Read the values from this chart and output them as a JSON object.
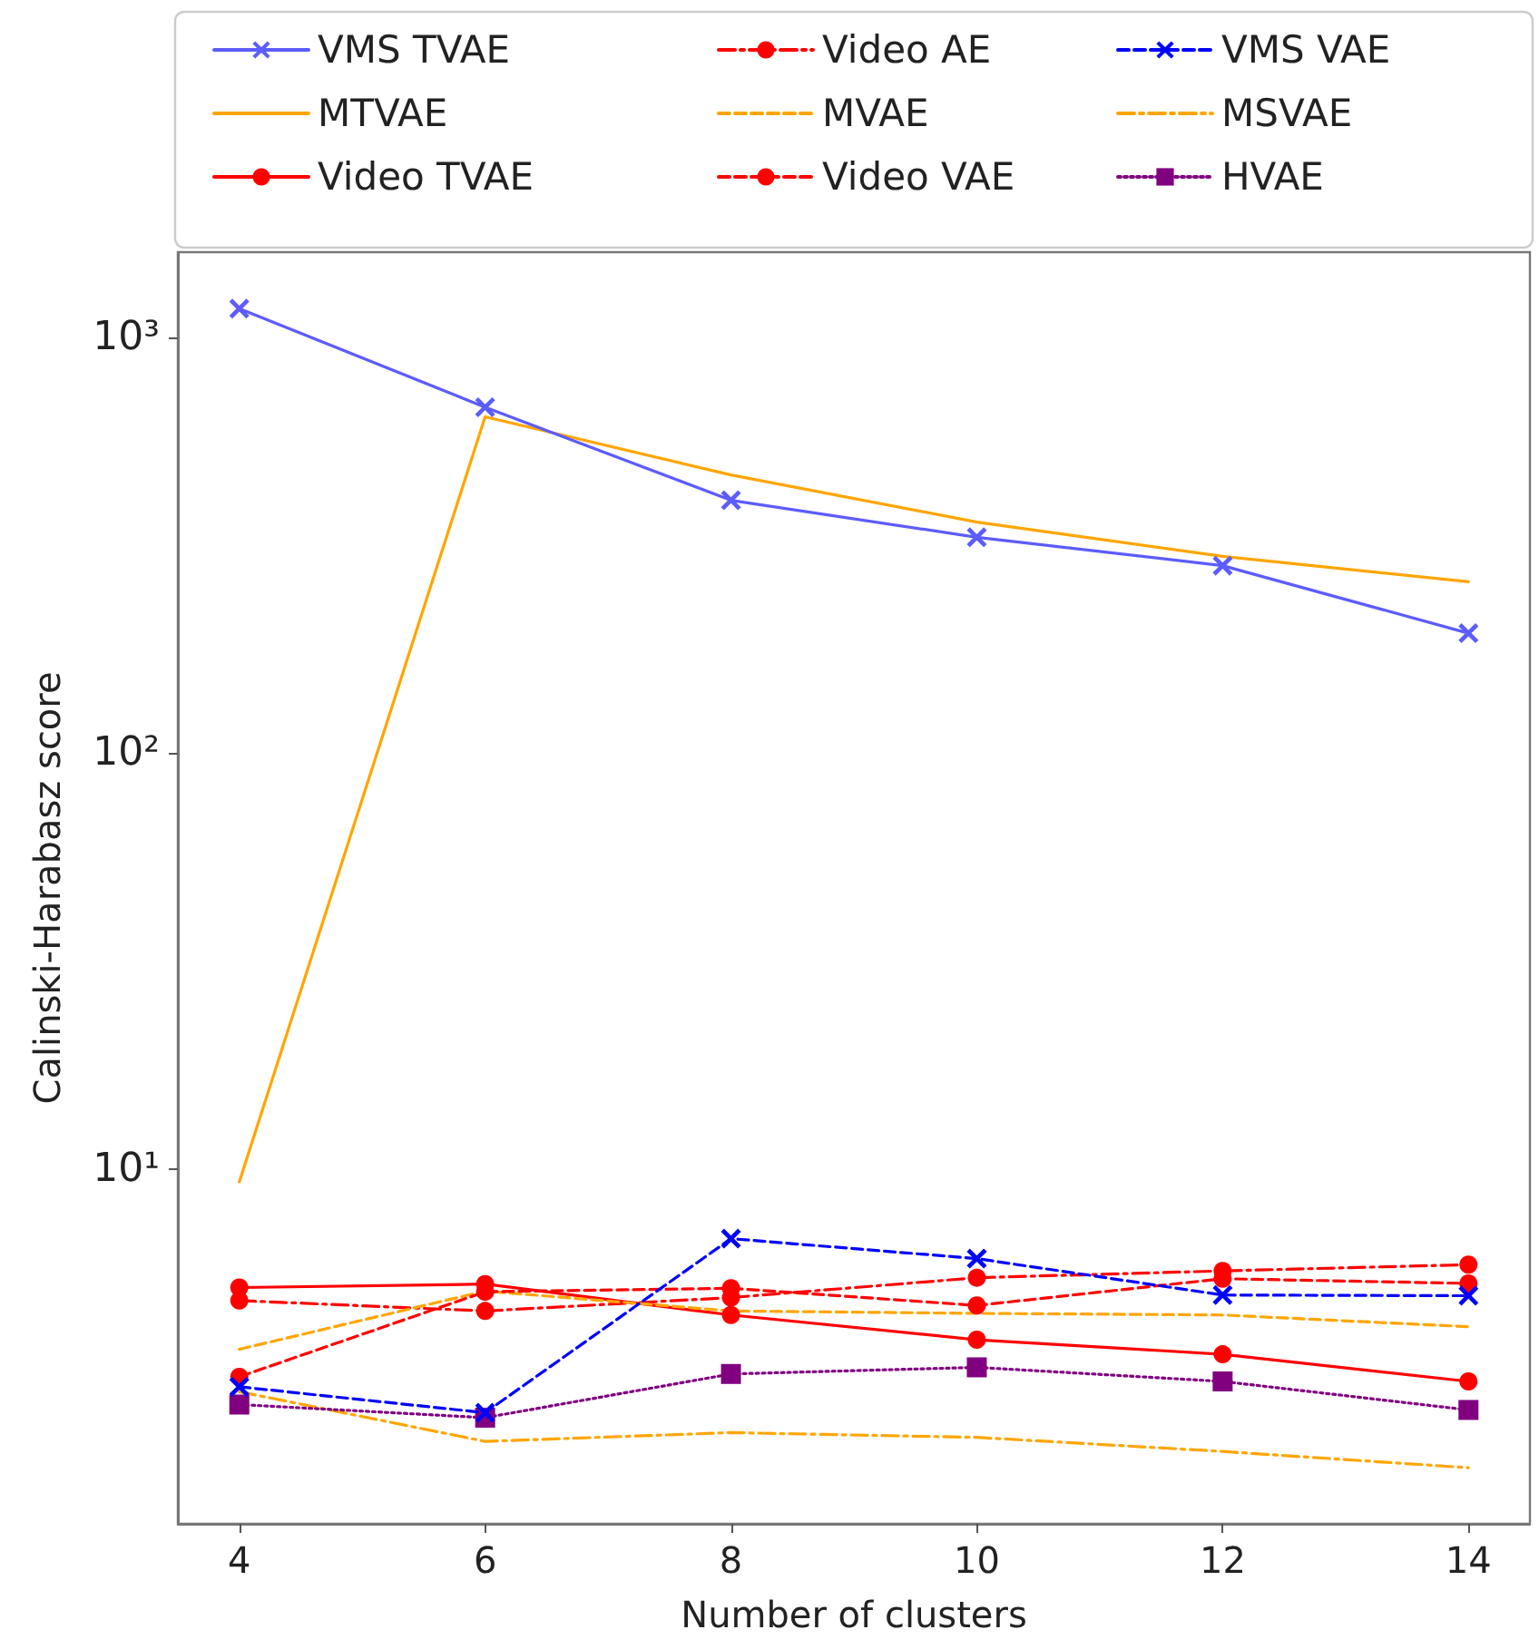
{
  "chart_data": {
    "type": "line",
    "xlabel": "Number of clusters",
    "ylabel": "Calinski-Harabasz score",
    "x": [
      4,
      6,
      8,
      10,
      12,
      14
    ],
    "xlim": [
      3.5,
      14.5
    ],
    "xticks": [
      4,
      6,
      8,
      10,
      12,
      14
    ],
    "ylim": [
      1.4,
      1600
    ],
    "yticks": [
      {
        "value": 10,
        "label": "10¹"
      },
      {
        "value": 100,
        "label": "10²"
      },
      {
        "value": 1000,
        "label": "10³"
      }
    ],
    "log": "y",
    "grid": false,
    "legend": "top",
    "series": [
      {
        "name": "VMS TVAE",
        "color": "#5c5cff",
        "marker": "cross",
        "line_style": "solid",
        "values": [
          1170,
          678,
          405,
          330,
          282,
          194
        ]
      },
      {
        "name": "MTVAE",
        "color": "#ffa500",
        "marker": "none",
        "line_style": "solid",
        "values": [
          9.3,
          643,
          466,
          359,
          297,
          258
        ]
      },
      {
        "name": "Video TVAE",
        "color": "#ff0000",
        "marker": "circle",
        "line_style": "solid",
        "values": [
          5.18,
          5.28,
          4.45,
          3.88,
          3.58,
          3.08
        ]
      },
      {
        "name": "Video AE",
        "color": "#ff0000",
        "marker": "circle",
        "line_style": "dashdot",
        "values": [
          4.82,
          4.55,
          4.9,
          5.47,
          5.68,
          5.88
        ]
      },
      {
        "name": "MVAE",
        "color": "#ffa500",
        "marker": "none",
        "line_style": "dashed",
        "values": [
          3.68,
          5.08,
          4.55,
          4.49,
          4.45,
          4.17
        ]
      },
      {
        "name": "Video VAE",
        "color": "#ff0000",
        "marker": "circle",
        "line_style": "dashed",
        "values": [
          3.16,
          5.06,
          5.16,
          4.69,
          5.44,
          5.3
        ]
      },
      {
        "name": "VMS VAE",
        "color": "#0000ff",
        "marker": "cross",
        "line_style": "dashed",
        "values": [
          2.99,
          2.59,
          6.79,
          6.08,
          4.97,
          4.95
        ]
      },
      {
        "name": "MSVAE",
        "color": "#ffa500",
        "marker": "none",
        "line_style": "dashdot",
        "values": [
          2.91,
          2.21,
          2.32,
          2.26,
          2.09,
          1.91
        ]
      },
      {
        "name": "HVAE",
        "color": "#800080",
        "marker": "square",
        "line_style": "dotted",
        "values": [
          2.71,
          2.52,
          3.21,
          3.33,
          3.08,
          2.63
        ]
      }
    ]
  }
}
